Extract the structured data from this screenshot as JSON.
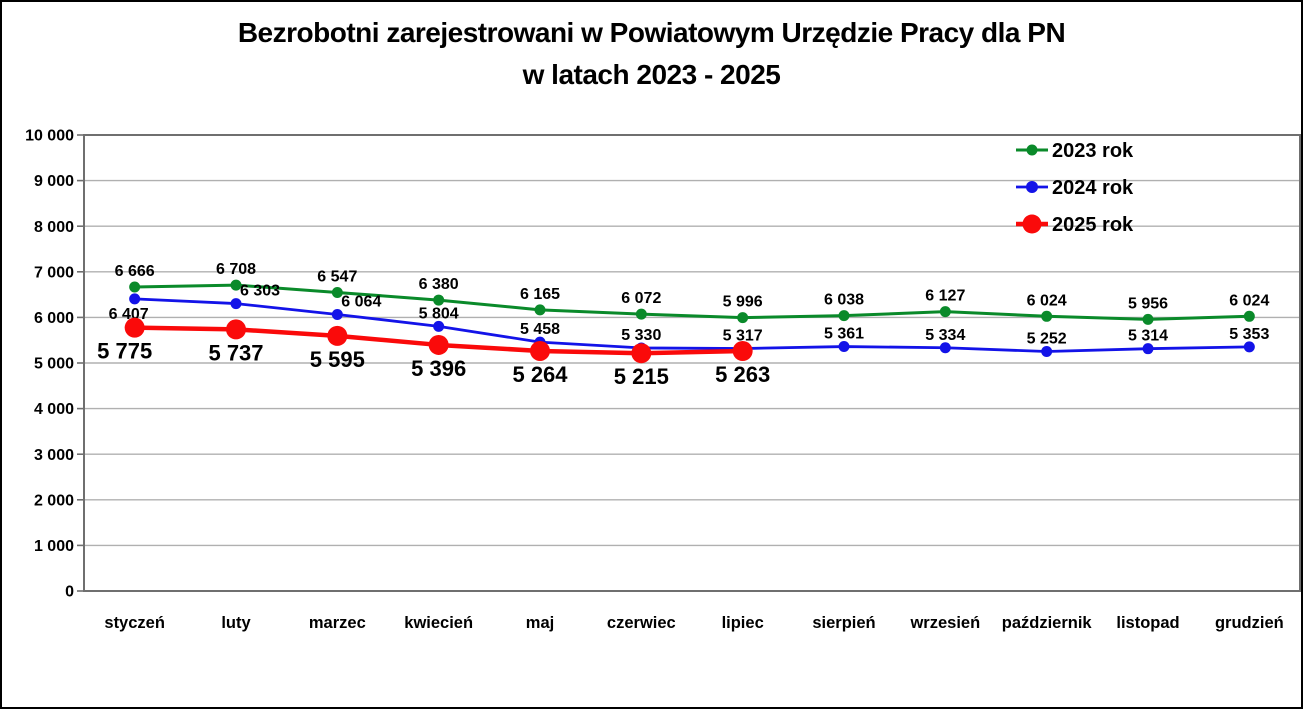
{
  "title": {
    "line1": "Bezrobotni zarejestrowani w Powiatowym Urzędzie Pracy dla PN",
    "line2": "w latach 2023 - 2025"
  },
  "chart_data": {
    "type": "line",
    "title": "Bezrobotni zarejestrowani w Powiatowym Urzędzie Pracy dla PN",
    "subtitle": "w latach 2023 - 2025",
    "categories": [
      "styczeń",
      "luty",
      "marzec",
      "kwiecień",
      "maj",
      "czerwiec",
      "lipiec",
      "sierpień",
      "wrzesień",
      "październik",
      "listopad",
      "grudzień"
    ],
    "series": [
      {
        "name": "2023 rok",
        "color": "#0a8a2a",
        "label_position": "above",
        "values": [
          6666,
          6708,
          6547,
          6380,
          6165,
          6072,
          5996,
          6038,
          6127,
          6024,
          5956,
          6024
        ]
      },
      {
        "name": "2024 rok",
        "color": "#1313e8",
        "label_position": "above",
        "label_overrides": {
          "0": {
            "position": "below",
            "dx": -6
          },
          "1": {
            "dx": 24
          },
          "2": {
            "dx": 24
          }
        },
        "values": [
          6407,
          6303,
          6064,
          5804,
          5458,
          5330,
          5317,
          5361,
          5334,
          5252,
          5314,
          5353
        ]
      },
      {
        "name": "2025 rok",
        "color": "#fa0a0a",
        "label_position": "below",
        "label_overrides": {
          "0": {
            "dx": -10
          }
        },
        "values": [
          5775,
          5737,
          5595,
          5396,
          5264,
          5215,
          5263
        ]
      }
    ],
    "ylabel": "",
    "xlabel": "",
    "ylim": [
      0,
      10000
    ],
    "ytick_step": 1000,
    "grid": true,
    "legend_position": "top-right",
    "number_format": "space-thousands",
    "data_labels": true
  },
  "colors": {
    "grid": "#b0b0b0",
    "plot_border": "#6f6f6f",
    "text": "#000000",
    "page_border": "#000000"
  }
}
